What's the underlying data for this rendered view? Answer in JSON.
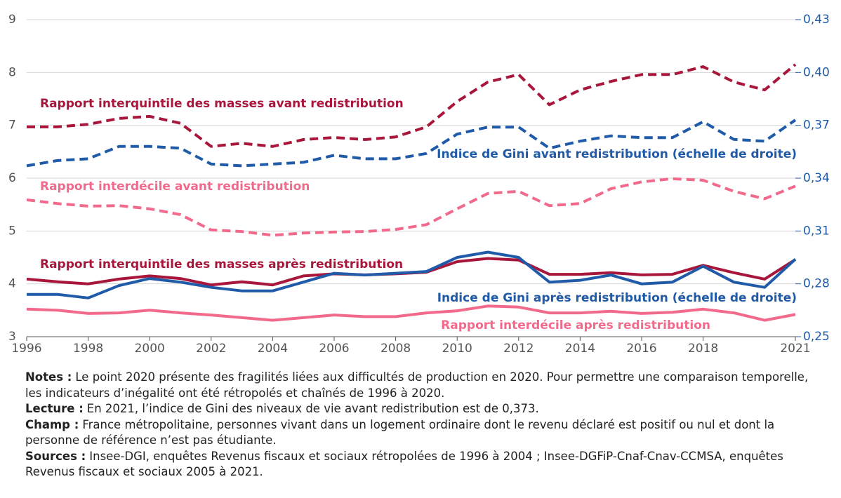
{
  "chart_data": {
    "type": "line",
    "x": [
      1996,
      1997,
      1998,
      1999,
      2000,
      2001,
      2002,
      2003,
      2004,
      2005,
      2006,
      2007,
      2008,
      2009,
      2010,
      2011,
      2012,
      2013,
      2014,
      2015,
      2016,
      2017,
      2018,
      2019,
      2020,
      2021
    ],
    "xlim": [
      1996,
      2021
    ],
    "xticks": [
      1996,
      1998,
      2000,
      2002,
      2004,
      2006,
      2008,
      2010,
      2012,
      2014,
      2016,
      2018,
      2021
    ],
    "ylim": [
      3,
      9
    ],
    "yticks": [
      3,
      4,
      5,
      6,
      7,
      8,
      9
    ],
    "y2lim": [
      0.25,
      0.43
    ],
    "y2ticks": [
      {
        "value": 0.25,
        "label": "0,25"
      },
      {
        "value": 0.28,
        "label": "0,28"
      },
      {
        "value": 0.31,
        "label": "0,31"
      },
      {
        "value": 0.34,
        "label": "0,34"
      },
      {
        "value": 0.37,
        "label": "0,37"
      },
      {
        "value": 0.4,
        "label": "0,40"
      },
      {
        "value": 0.43,
        "label": "0,43"
      }
    ],
    "grid": true,
    "series": [
      {
        "name": "Rapport interquintile des masses avant redistribution",
        "color": "#a8173b",
        "linestyle": "dashed",
        "values": [
          6.97,
          6.97,
          7.02,
          7.13,
          7.17,
          7.04,
          6.6,
          6.66,
          6.6,
          6.73,
          6.77,
          6.73,
          6.78,
          6.97,
          7.45,
          7.82,
          7.96,
          7.39,
          7.67,
          7.83,
          7.96,
          7.96,
          8.11,
          7.82,
          7.67,
          8.15
        ]
      },
      {
        "name": "Indice de Gini avant redistribution (échelle de droite)",
        "color": "#1f5ba8",
        "linestyle": "dashed",
        "axis": "y2",
        "values": [
          0.347,
          0.35,
          0.351,
          0.358,
          0.358,
          0.357,
          0.348,
          0.347,
          0.348,
          0.349,
          0.353,
          0.351,
          0.351,
          0.354,
          0.365,
          0.369,
          0.369,
          0.357,
          0.361,
          0.364,
          0.363,
          0.363,
          0.372,
          0.362,
          0.361,
          0.373
        ]
      },
      {
        "name": "Rapport interdécile avant redistribution",
        "color": "#f26a8b",
        "linestyle": "dashed",
        "values": [
          5.59,
          5.52,
          5.47,
          5.48,
          5.42,
          5.31,
          5.02,
          4.99,
          4.92,
          4.96,
          4.98,
          4.99,
          5.03,
          5.12,
          5.42,
          5.71,
          5.75,
          5.48,
          5.52,
          5.8,
          5.93,
          5.99,
          5.96,
          5.75,
          5.61,
          5.85
        ]
      },
      {
        "name": "Rapport interquintile des masses après redistribution",
        "color": "#a8173b",
        "linestyle": "solid",
        "values": [
          4.09,
          4.04,
          4.0,
          4.09,
          4.15,
          4.1,
          3.98,
          4.04,
          3.98,
          4.15,
          4.19,
          4.17,
          4.19,
          4.22,
          4.42,
          4.48,
          4.45,
          4.18,
          4.18,
          4.21,
          4.17,
          4.18,
          4.35,
          4.21,
          4.09,
          4.46
        ]
      },
      {
        "name": "Indice de Gini après redistribution (échelle de droite)",
        "color": "#1f5ba8",
        "linestyle": "solid",
        "axis": "y2",
        "values": [
          0.274,
          0.274,
          0.272,
          0.279,
          0.283,
          0.281,
          0.278,
          0.276,
          0.276,
          0.281,
          0.286,
          0.285,
          0.286,
          0.287,
          0.295,
          0.298,
          0.295,
          0.281,
          0.282,
          0.285,
          0.28,
          0.281,
          0.29,
          0.281,
          0.278,
          0.294
        ]
      },
      {
        "name": "Rapport interdécile après redistribution",
        "color": "#f26a8b",
        "linestyle": "solid",
        "values": [
          3.52,
          3.5,
          3.44,
          3.45,
          3.5,
          3.45,
          3.41,
          3.36,
          3.31,
          3.36,
          3.41,
          3.38,
          3.38,
          3.45,
          3.49,
          3.58,
          3.56,
          3.45,
          3.45,
          3.48,
          3.44,
          3.46,
          3.52,
          3.45,
          3.31,
          3.42
        ]
      }
    ]
  },
  "notes": [
    {
      "label": "Notes :",
      "text": "Le point 2020 présente des fragilités liées aux difficultés de production en 2020. Pour permettre une comparaison temporelle, les indicateurs d’inégalité ont été rétropolés et chaînés de 1996 à 2020."
    },
    {
      "label": "Lecture :",
      "text": "En 2021, l’indice de Gini des niveaux de vie avant redistribution est de 0,373."
    },
    {
      "label": "Champ :",
      "text": "France métropolitaine, personnes vivant dans un logement ordinaire dont le revenu déclaré est positif ou nul et dont la personne de référence n’est pas étudiante."
    },
    {
      "label": "Sources :",
      "text": "Insee-DGI, enquêtes Revenus fiscaux et sociaux rétropolées de 1996 à 2004 ; Insee-DGFiP-Cnaf-Cnav-CCMSA, enquêtes Revenus fiscaux et sociaux 2005 à 2021."
    }
  ]
}
